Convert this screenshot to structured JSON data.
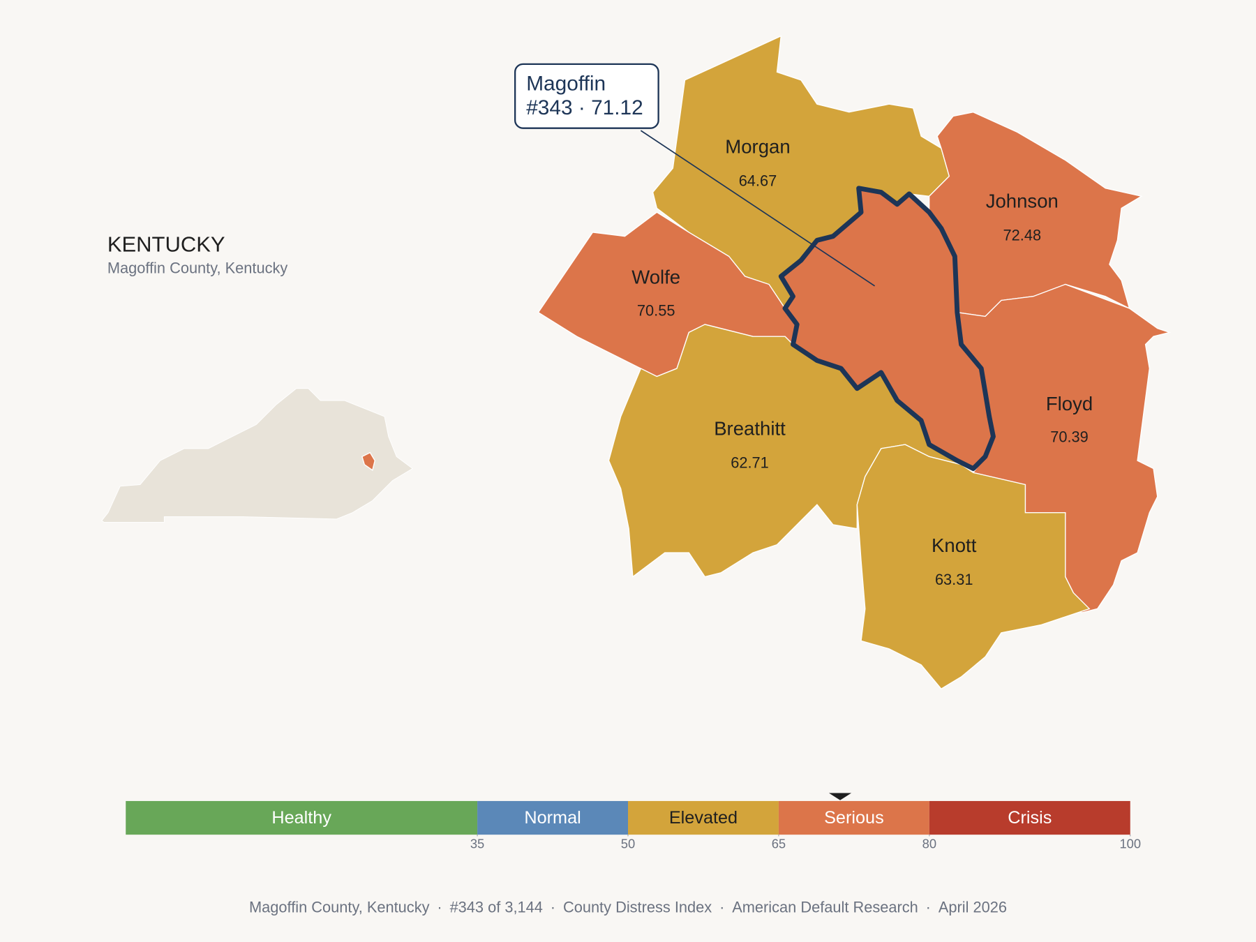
{
  "header": {
    "title": "KENTUCKY",
    "subtitle": "Magoffin County, Kentucky"
  },
  "counties": [
    {
      "name": "Magoffin",
      "value": 71.12
    },
    {
      "name": "Morgan",
      "value": 64.67
    },
    {
      "name": "Johnson",
      "value": 72.48
    },
    {
      "name": "Wolfe",
      "value": 70.55
    },
    {
      "name": "Floyd",
      "value": 70.39
    },
    {
      "name": "Breathitt",
      "value": 62.71
    },
    {
      "name": "Knott",
      "value": 63.31
    }
  ],
  "callout": {
    "detail": "#343 · 71.12"
  },
  "scale": {
    "xlim": [
      0,
      100
    ],
    "xticks": [
      35,
      50,
      65,
      80,
      100
    ],
    "bands": [
      {
        "label": "Healthy",
        "color": "#68a758"
      },
      {
        "label": "Normal",
        "color": "#5b88b8"
      },
      {
        "label": "Elevated",
        "color": "#d3a43b"
      },
      {
        "label": "Serious",
        "color": "#dc754a"
      },
      {
        "label": "Crisis",
        "color": "#b83c2c"
      }
    ]
  },
  "footer": {
    "separator": "·",
    "items": [
      "Magoffin County, Kentucky",
      "#343 of 3,144",
      "County Distress Index",
      "American Default Research",
      "April 2026"
    ]
  }
}
